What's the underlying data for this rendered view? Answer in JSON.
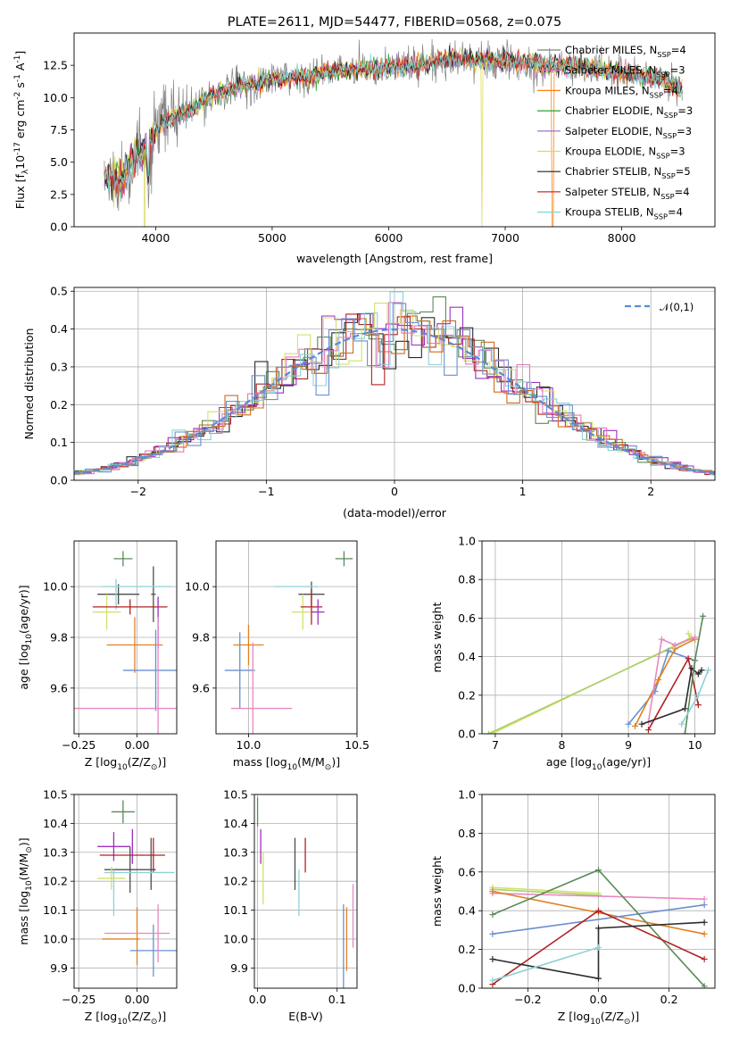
{
  "chart_data": [
    {
      "id": "spectrum",
      "type": "line",
      "title": "PLATE=2611, MJD=54477, FIBERID=0568, z=0.075",
      "xlabel": "wavelength [Angstrom, rest frame]",
      "ylabel": "Flux [f$_\\lambda$10$^{-17}$ erg cm$^{-2}$ s$^{-1}$ A$^{-1}$]",
      "xlim": [
        3300,
        8800
      ],
      "ylim": [
        0,
        15
      ],
      "xticks": [
        "4000",
        "5000",
        "6000",
        "7000",
        "8000"
      ],
      "yticks": [
        "0.0",
        "2.5",
        "5.0",
        "7.5",
        "10.0",
        "12.5"
      ],
      "grid": false,
      "legend_position": "right",
      "continuum": {
        "x": [
          3560,
          3700,
          3800,
          3900,
          4000,
          4100,
          4200,
          4300,
          4500,
          4700,
          5000,
          5300,
          5500,
          5800,
          6000,
          6300,
          6500,
          6800,
          7000,
          7300,
          7600,
          8000,
          8300,
          8500
        ],
        "y": [
          3.8,
          3.6,
          5.2,
          5.8,
          7.4,
          8.3,
          8.6,
          9.0,
          10.3,
          10.8,
          11.4,
          11.6,
          12.0,
          12.2,
          12.4,
          12.6,
          13.0,
          12.9,
          12.8,
          12.6,
          12.4,
          12.0,
          11.5,
          10.8
        ]
      },
      "series": [
        {
          "name": "Chabrier MILES, N$_{SSP}$=4",
          "color": "#808080"
        },
        {
          "name": "Salpeter MILES, N$_{SSP}$=3",
          "color": "#e377c2"
        },
        {
          "name": "Kroupa MILES, N$_{SSP}$=4",
          "color": "#ff7f0e"
        },
        {
          "name": "Chabrier ELODIE, N$_{SSP}$=3",
          "color": "#2ca02c"
        },
        {
          "name": "Salpeter ELODIE, N$_{SSP}$=3",
          "color": "#9467bd"
        },
        {
          "name": "Kroupa ELODIE, N$_{SSP}$=3",
          "color": "#dbdb58"
        },
        {
          "name": "Chabrier STELIB, N$_{SSP}$=5",
          "color": "#202020"
        },
        {
          "name": "Salpeter STELIB, N$_{SSP}$=4",
          "color": "#d62728"
        },
        {
          "name": "Kroupa STELIB, N$_{SSP}$=4",
          "color": "#7fd3d8"
        }
      ]
    },
    {
      "id": "histogram",
      "type": "bar",
      "xlabel": "(data-model)/error",
      "ylabel": "Normed distribution",
      "xlim": [
        -2.5,
        2.5
      ],
      "ylim": [
        0,
        0.51
      ],
      "xticks": [
        "−2",
        "−1",
        "0",
        "1",
        "2"
      ],
      "yticks": [
        "0.0",
        "0.1",
        "0.2",
        "0.3",
        "0.4",
        "0.5"
      ],
      "grid": true,
      "legend": "$\\mathcal{N}(0,1)$",
      "legend_position": "top-right",
      "bin_width": 0.1,
      "series_colors": [
        "#5a8a5a",
        "#2b2b2b",
        "#b22222",
        "#9b30c0",
        "#d4e06a",
        "#e377c2",
        "#8fd0d6",
        "#d2691e",
        "#6a8fd0"
      ]
    },
    {
      "id": "age-vs-Z",
      "type": "scatter",
      "xlabel": "Z [log$_{10}$(Z/Z$_\\odot$)]",
      "ylabel": "age  [log$_{10}$(age/yr)]",
      "xlim": [
        -0.27,
        0.17
      ],
      "ylim": [
        9.42,
        10.18
      ],
      "xticks": [
        {
          "v": -0.25,
          "t": "−0.25"
        },
        {
          "v": 0,
          "t": "0.00"
        }
      ],
      "yticks": [
        {
          "v": 9.6,
          "t": "9.6"
        },
        {
          "v": 9.8,
          "t": "9.8"
        },
        {
          "v": 10.0,
          "t": "10.0"
        }
      ],
      "points": [
        {
          "x": -0.06,
          "y": 10.11,
          "xe": 0.04,
          "ye": 0.03,
          "c": "#5a8a5a"
        },
        {
          "x": -0.08,
          "y": 9.97,
          "xe": 0.09,
          "ye": 0.04,
          "c": "#4d4d4d"
        },
        {
          "x": 0.07,
          "y": 9.97,
          "xe": 0.01,
          "ye": 0.11,
          "c": "#4d4d4d"
        },
        {
          "x": 0.0,
          "y": 10.0,
          "xe": 0.15,
          "ye": 0.0,
          "c": "#8fd0d6"
        },
        {
          "x": -0.09,
          "y": 9.97,
          "xe": 0.0,
          "ye": 0.06,
          "c": "#8fd0d6"
        },
        {
          "x": -0.13,
          "y": 9.9,
          "xe": 0.06,
          "ye": 0.07,
          "c": "#d4e06a"
        },
        {
          "x": -0.03,
          "y": 9.92,
          "xe": 0.16,
          "ye": 0.03,
          "c": "#b22222"
        },
        {
          "x": 0.09,
          "y": 9.86,
          "xe": 0.0,
          "ye": 0.1,
          "c": "#9b30c0"
        },
        {
          "x": -0.01,
          "y": 9.77,
          "xe": 0.12,
          "ye": 0.11,
          "c": "#e08020"
        },
        {
          "x": 0.08,
          "y": 9.67,
          "xe": 0.14,
          "ye": 0.16,
          "c": "#6a8fd0"
        },
        {
          "x": -0.02,
          "y": 9.52,
          "xe": 0.28,
          "ye": 0.0,
          "c": "#e888c0"
        },
        {
          "x": 0.09,
          "y": 9.6,
          "xe": 0.0,
          "ye": 0.28,
          "c": "#e888c0"
        }
      ]
    },
    {
      "id": "age-vs-mass",
      "type": "scatter",
      "xlabel": "mass [log$_{10}$(M/M$_\\odot$)]",
      "ylabel": "",
      "xlim": [
        9.85,
        10.5
      ],
      "ylim": [
        9.42,
        10.18
      ],
      "xticks": [
        {
          "v": 10.0,
          "t": "10.0"
        },
        {
          "v": 10.5,
          "t": "10.5"
        }
      ],
      "yticks": [
        {
          "v": 9.6,
          "t": "9.6"
        },
        {
          "v": 9.8,
          "t": "9.8"
        },
        {
          "v": 10.0,
          "t": "10.0"
        }
      ],
      "points": [
        {
          "x": 10.44,
          "y": 10.11,
          "xe": 0.04,
          "ye": 0.03,
          "c": "#5a8a5a"
        },
        {
          "x": 10.29,
          "y": 9.97,
          "xe": 0.06,
          "ye": 0.05,
          "c": "#4d4d4d"
        },
        {
          "x": 10.22,
          "y": 10.0,
          "xe": 0.1,
          "ye": 0.0,
          "c": "#8fd0d6"
        },
        {
          "x": 10.25,
          "y": 9.9,
          "xe": 0.05,
          "ye": 0.07,
          "c": "#d4e06a"
        },
        {
          "x": 10.29,
          "y": 9.92,
          "xe": 0.05,
          "ye": 0.07,
          "c": "#b22222"
        },
        {
          "x": 10.32,
          "y": 9.9,
          "xe": 0.03,
          "ye": 0.05,
          "c": "#9b30c0"
        },
        {
          "x": 10.0,
          "y": 9.77,
          "xe": 0.07,
          "ye": 0.08,
          "c": "#e08020"
        },
        {
          "x": 9.96,
          "y": 9.67,
          "xe": 0.07,
          "ye": 0.15,
          "c": "#6a8fd0"
        },
        {
          "x": 10.06,
          "y": 9.52,
          "xe": 0.14,
          "ye": 0.0,
          "c": "#e888c0"
        },
        {
          "x": 10.02,
          "y": 9.6,
          "xe": 0.0,
          "ye": 0.18,
          "c": "#e888c0"
        }
      ]
    },
    {
      "id": "massweight-vs-age",
      "type": "line",
      "xlabel": "age  [log$_{10}$(age/yr)]",
      "ylabel": "mass weight",
      "xlim": [
        6.8,
        10.3
      ],
      "ylim": [
        0,
        1.0
      ],
      "xticks": [
        {
          "v": 7,
          "t": "7"
        },
        {
          "v": 8,
          "t": "8"
        },
        {
          "v": 9,
          "t": "9"
        },
        {
          "v": 10,
          "t": "10"
        }
      ],
      "yticks": [
        {
          "v": 0,
          "t": "0.0"
        },
        {
          "v": 0.2,
          "t": "0.2"
        },
        {
          "v": 0.4,
          "t": "0.4"
        },
        {
          "v": 0.6,
          "t": "0.6"
        },
        {
          "v": 0.8,
          "t": "0.8"
        },
        {
          "v": 1.0,
          "t": "1.0"
        }
      ],
      "series": [
        {
          "c": "#d4e06a",
          "pts": [
            [
              6.95,
              0.0
            ],
            [
              9.95,
              0.5
            ],
            [
              9.9,
              0.52
            ]
          ]
        },
        {
          "c": "#a8d070",
          "pts": [
            [
              6.9,
              0.0
            ],
            [
              9.92,
              0.49
            ]
          ]
        },
        {
          "c": "#6a8fd0",
          "pts": [
            [
              9.0,
              0.05
            ],
            [
              9.4,
              0.22
            ],
            [
              9.6,
              0.43
            ],
            [
              10.0,
              0.38
            ]
          ]
        },
        {
          "c": "#e08020",
          "pts": [
            [
              9.1,
              0.04
            ],
            [
              9.45,
              0.28
            ],
            [
              9.7,
              0.44
            ],
            [
              10.0,
              0.49
            ]
          ]
        },
        {
          "c": "#e888c0",
          "pts": [
            [
              9.3,
              0.06
            ],
            [
              9.5,
              0.49
            ],
            [
              9.7,
              0.46
            ],
            [
              10.0,
              0.5
            ]
          ]
        },
        {
          "c": "#b22222",
          "pts": [
            [
              9.3,
              0.02
            ],
            [
              9.9,
              0.39
            ],
            [
              10.05,
              0.15
            ]
          ]
        },
        {
          "c": "#2b2b2b",
          "pts": [
            [
              9.2,
              0.05
            ],
            [
              9.85,
              0.13
            ],
            [
              9.95,
              0.34
            ],
            [
              10.05,
              0.31
            ],
            [
              10.1,
              0.33
            ]
          ]
        },
        {
          "c": "#5a8a5a",
          "pts": [
            [
              9.85,
              0.0
            ],
            [
              10.0,
              0.38
            ],
            [
              10.12,
              0.61
            ]
          ]
        },
        {
          "c": "#8fd0d6",
          "pts": [
            [
              9.8,
              0.05
            ],
            [
              10.05,
              0.2
            ],
            [
              10.2,
              0.33
            ]
          ]
        }
      ]
    },
    {
      "id": "mass-vs-Z",
      "type": "scatter",
      "xlabel": "Z [log$_{10}$(Z/Z$_\\odot$)]",
      "ylabel": "mass [log$_{10}$(M/M$_\\odot$)]",
      "xlim": [
        -0.27,
        0.17
      ],
      "ylim": [
        9.83,
        10.5
      ],
      "xticks": [
        {
          "v": -0.25,
          "t": "−0.25"
        },
        {
          "v": 0,
          "t": "0.00"
        }
      ],
      "yticks": [
        {
          "v": 9.9,
          "t": "9.9"
        },
        {
          "v": 10.0,
          "t": "10.0"
        },
        {
          "v": 10.1,
          "t": "10.1"
        },
        {
          "v": 10.2,
          "t": "10.2"
        },
        {
          "v": 10.3,
          "t": "10.3"
        },
        {
          "v": 10.4,
          "t": "10.4"
        },
        {
          "v": 10.5,
          "t": "10.5"
        }
      ],
      "points": [
        {
          "x": -0.06,
          "y": 10.44,
          "xe": 0.05,
          "ye": 0.04,
          "c": "#5a8a5a"
        },
        {
          "x": -0.1,
          "y": 10.32,
          "xe": 0.07,
          "ye": 0.05,
          "c": "#9b30c0"
        },
        {
          "x": -0.02,
          "y": 10.32,
          "xe": 0.0,
          "ye": 0.06,
          "c": "#9b30c0"
        },
        {
          "x": -0.02,
          "y": 10.29,
          "xe": 0.14,
          "ye": 0.0,
          "c": "#b22222"
        },
        {
          "x": 0.07,
          "y": 10.29,
          "xe": 0.0,
          "ye": 0.06,
          "c": "#b22222"
        },
        {
          "x": -0.03,
          "y": 10.24,
          "xe": 0.11,
          "ye": 0.08,
          "c": "#4d4d4d"
        },
        {
          "x": 0.06,
          "y": 10.26,
          "xe": 0.0,
          "ye": 0.09,
          "c": "#4d4d4d"
        },
        {
          "x": 0.01,
          "y": 10.23,
          "xe": 0.15,
          "ye": 0.0,
          "c": "#8fd0d6"
        },
        {
          "x": -0.1,
          "y": 10.16,
          "xe": 0.0,
          "ye": 0.08,
          "c": "#8fd0d6"
        },
        {
          "x": -0.11,
          "y": 10.21,
          "xe": 0.06,
          "ye": 0.04,
          "c": "#d4e06a"
        },
        {
          "x": -0.07,
          "y": 10.0,
          "xe": 0.08,
          "ye": 0.0,
          "c": "#e08020"
        },
        {
          "x": 0.0,
          "y": 10.01,
          "xe": 0.0,
          "ye": 0.1,
          "c": "#e08020"
        },
        {
          "x": 0.07,
          "y": 9.96,
          "xe": 0.1,
          "ye": 0.09,
          "c": "#6a8fd0"
        },
        {
          "x": 0.0,
          "y": 10.02,
          "xe": 0.14,
          "ye": 0.0,
          "c": "#e888c0"
        },
        {
          "x": 0.09,
          "y": 10.02,
          "xe": 0.0,
          "ye": 0.1,
          "c": "#e888c0"
        }
      ]
    },
    {
      "id": "mass-vs-ebv",
      "type": "scatter",
      "xlabel": "E(B-V)",
      "ylabel": "",
      "xlim": [
        -0.004,
        0.125
      ],
      "ylim": [
        9.83,
        10.5
      ],
      "xticks": [
        {
          "v": 0.0,
          "t": "0.0"
        },
        {
          "v": 0.1,
          "t": "0.1"
        }
      ],
      "yticks": [
        {
          "v": 9.9,
          "t": "9.9"
        },
        {
          "v": 10.0,
          "t": "10.0"
        },
        {
          "v": 10.1,
          "t": "10.1"
        },
        {
          "v": 10.2,
          "t": "10.2"
        },
        {
          "v": 10.3,
          "t": "10.3"
        },
        {
          "v": 10.4,
          "t": "10.4"
        },
        {
          "v": 10.5,
          "t": "10.5"
        }
      ],
      "points": [
        {
          "x": 0.0,
          "y": 10.44,
          "xe": 0.0,
          "ye": 0.05,
          "c": "#5a8a5a"
        },
        {
          "x": 0.004,
          "y": 10.32,
          "xe": 0.0,
          "ye": 0.06,
          "c": "#9b30c0"
        },
        {
          "x": 0.007,
          "y": 10.21,
          "xe": 0.0,
          "ye": 0.09,
          "c": "#d4e06a"
        },
        {
          "x": 0.047,
          "y": 10.26,
          "xe": 0.0,
          "ye": 0.09,
          "c": "#4d4d4d"
        },
        {
          "x": 0.052,
          "y": 10.16,
          "xe": 0.0,
          "ye": 0.08,
          "c": "#8fd0d6"
        },
        {
          "x": 0.06,
          "y": 10.29,
          "xe": 0.0,
          "ye": 0.06,
          "c": "#b22222"
        },
        {
          "x": 0.108,
          "y": 9.96,
          "xe": 0.0,
          "ye": 0.16,
          "c": "#6a8fd0"
        },
        {
          "x": 0.112,
          "y": 10.0,
          "xe": 0.0,
          "ye": 0.11,
          "c": "#e08020"
        },
        {
          "x": 0.12,
          "y": 10.08,
          "xe": 0.0,
          "ye": 0.11,
          "c": "#e888c0"
        }
      ]
    },
    {
      "id": "massweight-vs-Z",
      "type": "line",
      "xlabel": "Z [log$_{10}$(Z/Z$_\\odot$)]",
      "ylabel": "mass weight",
      "xlim": [
        -0.33,
        0.33
      ],
      "ylim": [
        0,
        1.0
      ],
      "xticks": [
        {
          "v": -0.2,
          "t": "−0.2"
        },
        {
          "v": 0.0,
          "t": "0.0"
        },
        {
          "v": 0.2,
          "t": "0.2"
        }
      ],
      "yticks": [
        {
          "v": 0,
          "t": "0.0"
        },
        {
          "v": 0.2,
          "t": "0.2"
        },
        {
          "v": 0.4,
          "t": "0.4"
        },
        {
          "v": 0.6,
          "t": "0.6"
        },
        {
          "v": 0.8,
          "t": "0.8"
        },
        {
          "v": 1.0,
          "t": "1.0"
        }
      ],
      "series": [
        {
          "c": "#d4e06a",
          "pts": [
            [
              -0.3,
              0.52
            ],
            [
              0.0,
              0.49
            ]
          ]
        },
        {
          "c": "#a8d070",
          "pts": [
            [
              -0.3,
              0.51
            ],
            [
              0.0,
              0.48
            ]
          ]
        },
        {
          "c": "#e888c0",
          "pts": [
            [
              -0.3,
              0.49
            ],
            [
              0.3,
              0.46
            ]
          ]
        },
        {
          "c": "#e08020",
          "pts": [
            [
              -0.3,
              0.5
            ],
            [
              0.0,
              0.39
            ],
            [
              0.3,
              0.28
            ]
          ]
        },
        {
          "c": "#6a8fd0",
          "pts": [
            [
              -0.3,
              0.28
            ],
            [
              0.3,
              0.43
            ]
          ]
        },
        {
          "c": "#5a8a5a",
          "pts": [
            [
              -0.3,
              0.38
            ],
            [
              0.0,
              0.61
            ],
            [
              0.3,
              0.01
            ]
          ]
        },
        {
          "c": "#b22222",
          "pts": [
            [
              -0.3,
              0.02
            ],
            [
              0.0,
              0.4
            ],
            [
              0.3,
              0.15
            ]
          ]
        },
        {
          "c": "#2b2b2b",
          "pts": [
            [
              -0.3,
              0.15
            ],
            [
              0.0,
              0.05
            ],
            [
              0.0,
              0.31
            ],
            [
              0.3,
              0.34
            ]
          ]
        },
        {
          "c": "#8fd0d6",
          "pts": [
            [
              -0.3,
              0.04
            ],
            [
              0.0,
              0.21
            ]
          ]
        }
      ]
    }
  ]
}
